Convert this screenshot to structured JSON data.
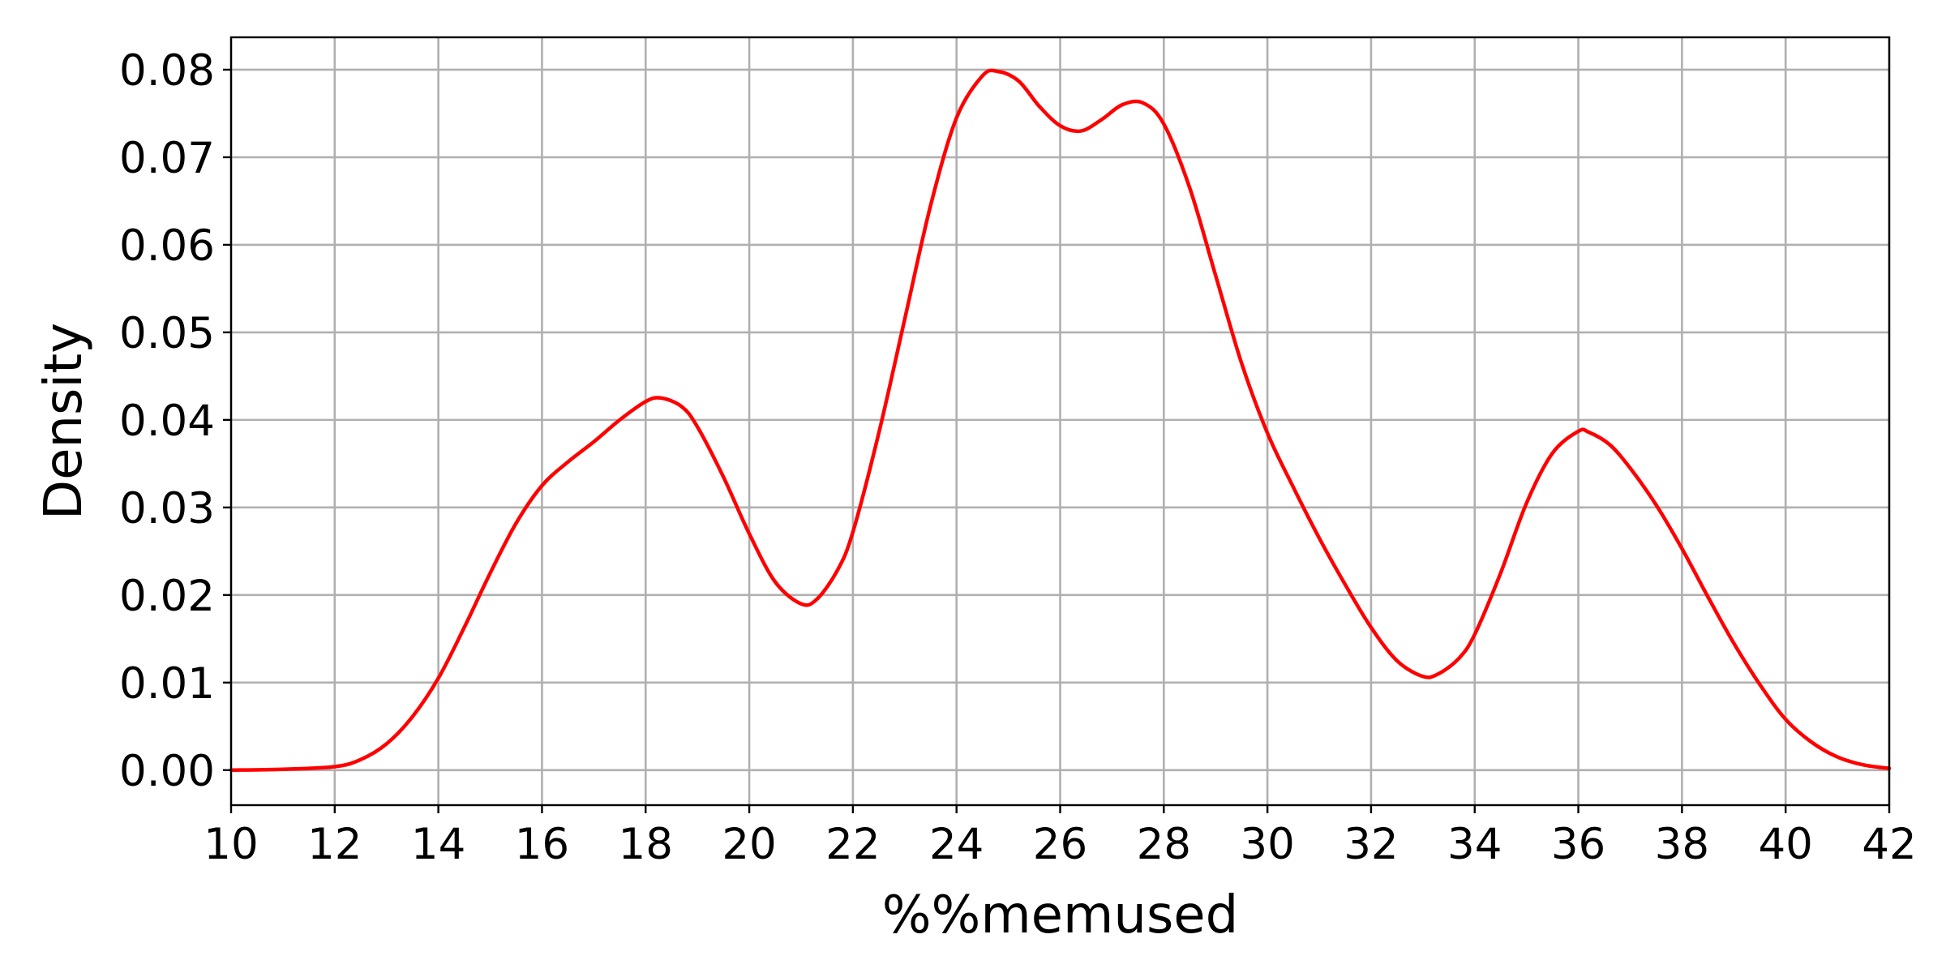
{
  "chart_data": {
    "type": "line",
    "title": "",
    "xlabel": "%%memused",
    "ylabel": "Density",
    "xlim": [
      10,
      42
    ],
    "ylim": [
      -0.004,
      0.0837
    ],
    "xticks": [
      10,
      12,
      14,
      16,
      18,
      20,
      22,
      24,
      26,
      28,
      30,
      32,
      34,
      36,
      38,
      40,
      42
    ],
    "xtick_labels": [
      "10",
      "12",
      "14",
      "16",
      "18",
      "20",
      "22",
      "24",
      "26",
      "28",
      "30",
      "32",
      "34",
      "36",
      "38",
      "40",
      "42"
    ],
    "yticks": [
      0.0,
      0.01,
      0.02,
      0.03,
      0.04,
      0.05,
      0.06,
      0.07,
      0.08
    ],
    "ytick_labels": [
      "0.00",
      "0.01",
      "0.02",
      "0.03",
      "0.04",
      "0.05",
      "0.06",
      "0.07",
      "0.08"
    ],
    "grid": true,
    "legend": "none",
    "series": [
      {
        "color": "#ff0000",
        "x": [
          10,
          11,
          12,
          12.5,
          13,
          13.5,
          14,
          14.5,
          15,
          15.5,
          16,
          16.5,
          17,
          17.5,
          18,
          18.3,
          18.7,
          19,
          19.5,
          20,
          20.5,
          21,
          21.3,
          21.7,
          22,
          22.5,
          23,
          23.5,
          24,
          24.5,
          24.8,
          25.2,
          25.6,
          26,
          26.4,
          26.8,
          27.2,
          27.6,
          28,
          28.5,
          29,
          29.5,
          30,
          30.5,
          31,
          31.5,
          32,
          32.5,
          33,
          33.3,
          33.7,
          34,
          34.5,
          35,
          35.5,
          36,
          36.2,
          36.6,
          37,
          37.5,
          38,
          38.5,
          39,
          39.5,
          40,
          40.5,
          41,
          41.5,
          42
        ],
        "y": [
          0.0,
          0.0001,
          0.0004,
          0.0012,
          0.003,
          0.0061,
          0.0105,
          0.0163,
          0.0225,
          0.0282,
          0.0325,
          0.0352,
          0.0375,
          0.04,
          0.0421,
          0.0425,
          0.0415,
          0.0392,
          0.0335,
          0.027,
          0.0215,
          0.019,
          0.0195,
          0.0228,
          0.0272,
          0.0385,
          0.0515,
          0.0645,
          0.0745,
          0.0793,
          0.0798,
          0.0787,
          0.0758,
          0.0736,
          0.073,
          0.0743,
          0.076,
          0.0762,
          0.0738,
          0.0665,
          0.0565,
          0.0465,
          0.0385,
          0.0323,
          0.0265,
          0.0212,
          0.0163,
          0.0125,
          0.0107,
          0.011,
          0.0128,
          0.0155,
          0.0225,
          0.0305,
          0.0362,
          0.0387,
          0.0386,
          0.0372,
          0.0345,
          0.0303,
          0.0253,
          0.0198,
          0.0145,
          0.0098,
          0.0058,
          0.0032,
          0.0015,
          0.0006,
          0.0002
        ]
      }
    ]
  }
}
